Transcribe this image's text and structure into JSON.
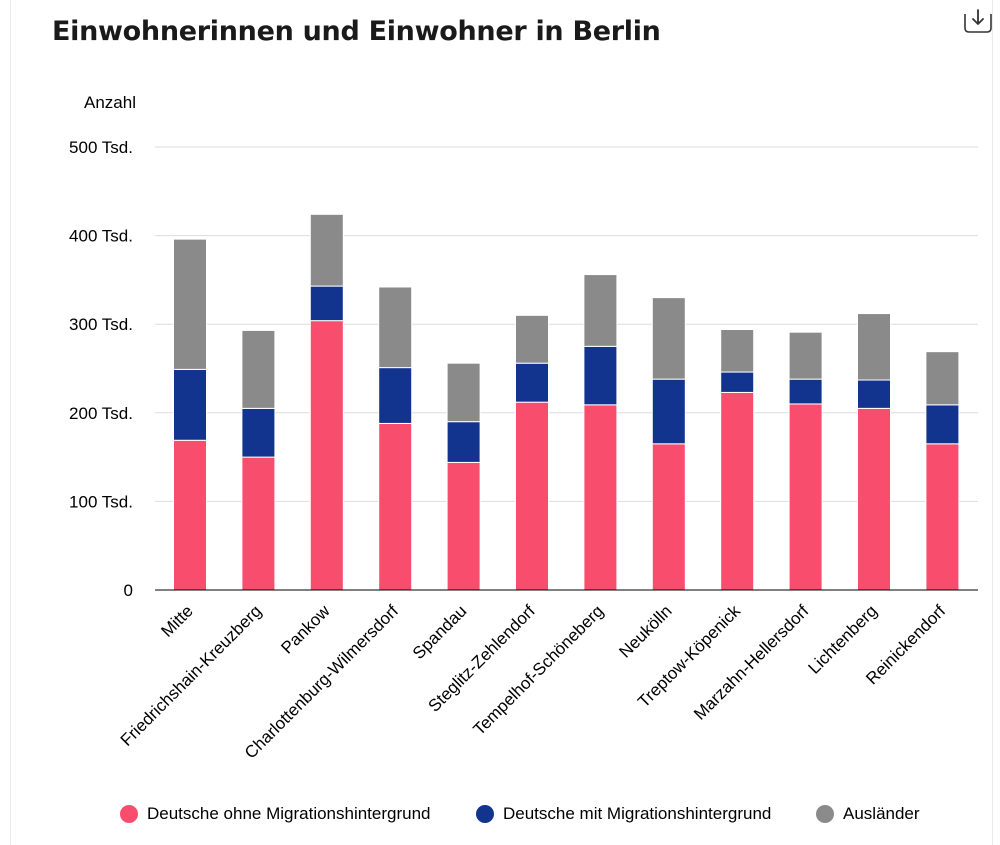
{
  "title": "Einwohnerinnen und Einwohner in Berlin",
  "download_icon": "download-icon",
  "colors": {
    "deutsche_ohne": "#f94d6e",
    "deutsche_mit": "#12348f",
    "auslaender": "#8a8a8a",
    "grid": "#dddddd",
    "axis": "#000000"
  },
  "chart_data": {
    "type": "bar",
    "stacked": true,
    "ylabel": "Anzahl",
    "ylim": [
      0,
      500000
    ],
    "yticks": [
      {
        "value": 0,
        "label": "0"
      },
      {
        "value": 100000,
        "label": "100 Tsd."
      },
      {
        "value": 200000,
        "label": "200 Tsd."
      },
      {
        "value": 300000,
        "label": "300 Tsd."
      },
      {
        "value": 400000,
        "label": "400 Tsd."
      },
      {
        "value": 500000,
        "label": "500 Tsd."
      }
    ],
    "grid": true,
    "legend_position": "bottom",
    "categories": [
      "Mitte",
      "Friedrichshain-Kreuzberg",
      "Pankow",
      "Charlottenburg-Wilmersdorf",
      "Spandau",
      "Steglitz-Zehlendorf",
      "Tempelhof-Schöneberg",
      "Neukölln",
      "Treptow-Köpenick",
      "Marzahn-Hellersdorf",
      "Lichtenberg",
      "Reinickendorf"
    ],
    "series": [
      {
        "name": "Deutsche ohne Migrationshintergrund",
        "color": "#f94d6e",
        "values": [
          169000,
          150000,
          304000,
          188000,
          144000,
          212000,
          209000,
          165000,
          223000,
          210000,
          205000,
          165000
        ]
      },
      {
        "name": "Deutsche mit Migrationshintergrund",
        "color": "#12348f",
        "values": [
          80000,
          55000,
          39000,
          63000,
          46000,
          44000,
          66000,
          73000,
          23000,
          28000,
          32000,
          44000
        ]
      },
      {
        "name": "Ausländer",
        "color": "#8a8a8a",
        "values": [
          147000,
          88000,
          81000,
          91000,
          66000,
          54000,
          81000,
          92000,
          48000,
          53000,
          75000,
          60000
        ]
      }
    ]
  }
}
